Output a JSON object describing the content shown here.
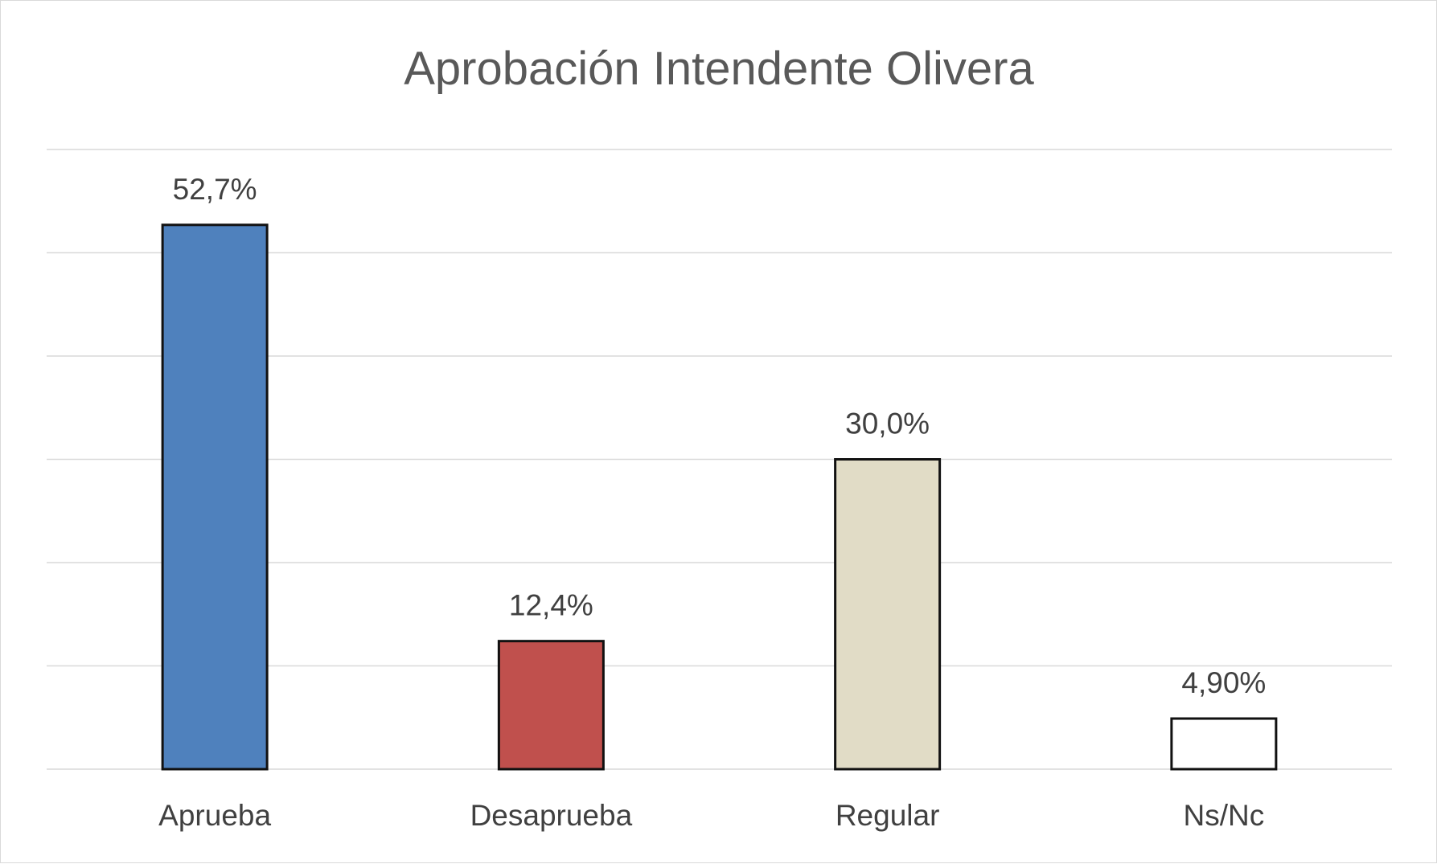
{
  "chart_data": {
    "type": "bar",
    "title": "Aprobación Intendente Olivera",
    "xlabel": "",
    "ylabel": "",
    "categories": [
      "Aprueba",
      "Desaprueba",
      "Regular",
      "Ns/Nc"
    ],
    "values": [
      52.7,
      12.4,
      30.0,
      4.9
    ],
    "data_labels": [
      "52,7%",
      "12,4%",
      "30,0%",
      "4,90%"
    ],
    "ylim": [
      0,
      60
    ],
    "y_tick_step": 10,
    "grid": true,
    "y_axis_labels_shown": false,
    "legend": "none",
    "bar_colors": [
      "#4f81bd",
      "#c0504d",
      "#e1dcc6",
      "#ffffff"
    ]
  }
}
